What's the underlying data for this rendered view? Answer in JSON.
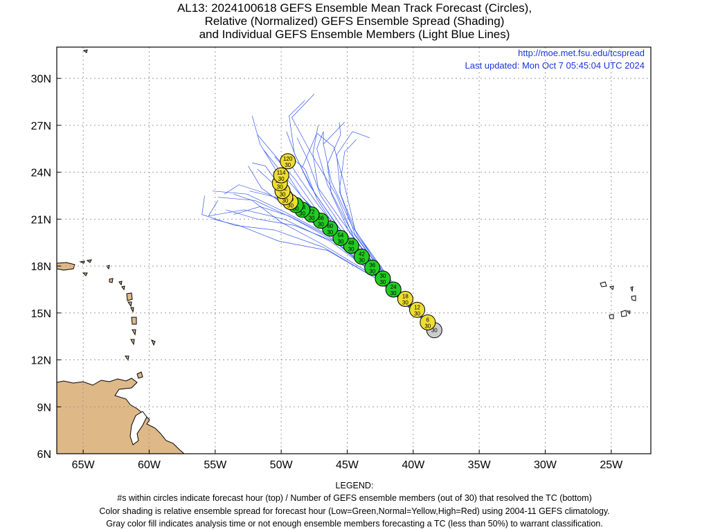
{
  "title_lines": [
    "AL13: 2024100618 GEFS Ensemble Mean Track Forecast (Circles),",
    "Relative (Normalized) GEFS Ensemble Spread (Shading)",
    "and Individual GEFS Ensemble Members (Light Blue Lines)"
  ],
  "url": "http://moe.met.fsu.edu/tcspread",
  "updated": "Last updated: Mon Oct 7 05:45:04 UTC 2024",
  "axes": {
    "lon_range": [
      -67,
      -22
    ],
    "lat_range": [
      6,
      32
    ],
    "x_ticks": [
      {
        "lon": -65,
        "label": "65W"
      },
      {
        "lon": -60,
        "label": "60W"
      },
      {
        "lon": -55,
        "label": "55W"
      },
      {
        "lon": -50,
        "label": "50W"
      },
      {
        "lon": -45,
        "label": "45W"
      },
      {
        "lon": -40,
        "label": "40W"
      },
      {
        "lon": -35,
        "label": "35W"
      },
      {
        "lon": -30,
        "label": "30W"
      },
      {
        "lon": -25,
        "label": "25W"
      }
    ],
    "y_ticks": [
      {
        "lat": 6,
        "label": "6N"
      },
      {
        "lat": 9,
        "label": "9N"
      },
      {
        "lat": 12,
        "label": "12N"
      },
      {
        "lat": 15,
        "label": "15N"
      },
      {
        "lat": 18,
        "label": "18N"
      },
      {
        "lat": 21,
        "label": "21N"
      },
      {
        "lat": 24,
        "label": "24N"
      },
      {
        "lat": 27,
        "label": "27N"
      },
      {
        "lat": 30,
        "label": "30N"
      }
    ]
  },
  "colors": {
    "low": "#22cc22",
    "normal": "#eedd33",
    "high": "#dd2222",
    "gray": "#cccccc",
    "member": "#3355ee",
    "land": "#deb887",
    "url": "#1a35d8"
  },
  "track": [
    {
      "hour": 0,
      "members": 30,
      "lon": -38.4,
      "lat": 13.9,
      "cls": "gray"
    },
    {
      "hour": 6,
      "members": 30,
      "lon": -38.9,
      "lat": 14.4,
      "cls": "normal"
    },
    {
      "hour": 12,
      "members": 30,
      "lon": -39.7,
      "lat": 15.2,
      "cls": "normal"
    },
    {
      "hour": 18,
      "members": 30,
      "lon": -40.6,
      "lat": 15.9,
      "cls": "normal"
    },
    {
      "hour": 24,
      "members": 30,
      "lon": -41.5,
      "lat": 16.5,
      "cls": "low"
    },
    {
      "hour": 30,
      "members": 30,
      "lon": -42.3,
      "lat": 17.2,
      "cls": "low"
    },
    {
      "hour": 36,
      "members": 30,
      "lon": -43.1,
      "lat": 17.9,
      "cls": "low"
    },
    {
      "hour": 42,
      "members": 30,
      "lon": -43.9,
      "lat": 18.6,
      "cls": "low"
    },
    {
      "hour": 48,
      "members": 30,
      "lon": -44.7,
      "lat": 19.3,
      "cls": "low"
    },
    {
      "hour": 54,
      "members": 30,
      "lon": -45.5,
      "lat": 19.8,
      "cls": "low"
    },
    {
      "hour": 60,
      "members": 30,
      "lon": -46.3,
      "lat": 20.4,
      "cls": "low"
    },
    {
      "hour": 66,
      "members": 30,
      "lon": -47.0,
      "lat": 20.9,
      "cls": "low"
    },
    {
      "hour": 72,
      "members": 30,
      "lon": -47.7,
      "lat": 21.3,
      "cls": "low"
    },
    {
      "hour": 78,
      "members": 30,
      "lon": -48.4,
      "lat": 21.6,
      "cls": "low"
    },
    {
      "hour": 84,
      "members": 30,
      "lon": -48.9,
      "lat": 21.9,
      "cls": "low"
    },
    {
      "hour": 90,
      "members": 30,
      "lon": -49.3,
      "lat": 22.1,
      "cls": "normal"
    },
    {
      "hour": 96,
      "members": 30,
      "lon": -49.7,
      "lat": 22.4,
      "cls": "normal"
    },
    {
      "hour": 102,
      "members": 30,
      "lon": -49.9,
      "lat": 22.8,
      "cls": "normal"
    },
    {
      "hour": 108,
      "members": 30,
      "lon": -50.1,
      "lat": 23.3,
      "cls": "normal"
    },
    {
      "hour": 114,
      "members": 30,
      "lon": -50.0,
      "lat": 23.8,
      "cls": "normal"
    },
    {
      "hour": 120,
      "members": 30,
      "lon": -49.5,
      "lat": 24.7,
      "cls": "normal"
    }
  ],
  "members": [
    [
      [
        -38.4,
        13.9
      ],
      [
        -42,
        17
      ],
      [
        -45.5,
        20
      ],
      [
        -48,
        22
      ],
      [
        -49.8,
        23.8
      ],
      [
        -51.3,
        25.4
      ]
    ],
    [
      [
        -38.4,
        13.9
      ],
      [
        -42,
        17
      ],
      [
        -45.2,
        19.6
      ],
      [
        -47.5,
        21.8
      ],
      [
        -49,
        23.6
      ],
      [
        -50.5,
        25
      ]
    ],
    [
      [
        -38.4,
        13.9
      ],
      [
        -42,
        17.1
      ],
      [
        -45,
        20
      ],
      [
        -47,
        22.5
      ],
      [
        -48,
        24.8
      ],
      [
        -48.8,
        26.2
      ]
    ],
    [
      [
        -38.4,
        13.9
      ],
      [
        -42,
        17.2
      ],
      [
        -44.8,
        20.4
      ],
      [
        -46.5,
        23.2
      ],
      [
        -47.3,
        25.5
      ],
      [
        -46.8,
        26.6
      ],
      [
        -46.8,
        25.8
      ]
    ],
    [
      [
        -38.4,
        13.9
      ],
      [
        -42.2,
        17.3
      ],
      [
        -45,
        20.4
      ],
      [
        -47.2,
        23
      ],
      [
        -47.6,
        25.2
      ],
      [
        -47.2,
        27
      ]
    ],
    [
      [
        -38.4,
        13.9
      ],
      [
        -42.2,
        17.2
      ],
      [
        -45.2,
        20
      ],
      [
        -47.8,
        21.8
      ],
      [
        -50,
        22.8
      ],
      [
        -51.8,
        24.2
      ]
    ],
    [
      [
        -38.4,
        13.9
      ],
      [
        -42,
        17
      ],
      [
        -44.5,
        19.8
      ],
      [
        -45.8,
        22.5
      ],
      [
        -47.6,
        25
      ],
      [
        -49.2,
        27.5
      ],
      [
        -47.5,
        29
      ]
    ],
    [
      [
        -38.4,
        13.9
      ],
      [
        -41.8,
        17
      ],
      [
        -44.4,
        20
      ],
      [
        -45.6,
        22.8
      ],
      [
        -45.2,
        25.3
      ],
      [
        -44.3,
        26.1
      ]
    ],
    [
      [
        -38.4,
        13.9
      ],
      [
        -41.8,
        17.2
      ],
      [
        -44.6,
        20.5
      ],
      [
        -46.2,
        23.4
      ],
      [
        -46.8,
        25.8
      ],
      [
        -45.2,
        27.2
      ]
    ],
    [
      [
        -38.4,
        13.9
      ],
      [
        -42,
        17.2
      ],
      [
        -44.4,
        20.3
      ],
      [
        -45.3,
        23.5
      ],
      [
        -46,
        25.6
      ],
      [
        -47.3,
        26.5
      ],
      [
        -48.4,
        24.3
      ]
    ],
    [
      [
        -38.4,
        13.9
      ],
      [
        -42.3,
        17.4
      ],
      [
        -45.4,
        20.2
      ],
      [
        -47.5,
        22.7
      ],
      [
        -48.9,
        25
      ],
      [
        -49.6,
        26.6
      ]
    ],
    [
      [
        -38.4,
        13.9
      ],
      [
        -42.4,
        17.4
      ],
      [
        -45.8,
        20.1
      ],
      [
        -48.3,
        21.8
      ],
      [
        -50,
        23
      ],
      [
        -51.2,
        24.4
      ],
      [
        -52.2,
        24.6
      ]
    ],
    [
      [
        -38.4,
        13.9
      ],
      [
        -42.6,
        17.2
      ],
      [
        -46,
        19.6
      ],
      [
        -49.2,
        21.1
      ],
      [
        -52,
        22.2
      ],
      [
        -54.8,
        22.4
      ]
    ],
    [
      [
        -38.4,
        13.9
      ],
      [
        -42.6,
        17.3
      ],
      [
        -46.3,
        19.6
      ],
      [
        -49.8,
        21
      ],
      [
        -52.8,
        21.6
      ],
      [
        -55.5,
        21.2
      ],
      [
        -54.8,
        22.2
      ]
    ],
    [
      [
        -38.4,
        13.9
      ],
      [
        -42.8,
        17.2
      ],
      [
        -46.8,
        19.2
      ],
      [
        -50.5,
        20.3
      ],
      [
        -53.5,
        20.6
      ],
      [
        -56,
        21.3
      ],
      [
        -55.8,
        22.5
      ]
    ],
    [
      [
        -38.4,
        13.9
      ],
      [
        -42.6,
        17.1
      ],
      [
        -46.5,
        19
      ],
      [
        -50.2,
        19.6
      ],
      [
        -53.2,
        20.6
      ],
      [
        -55.2,
        21
      ]
    ],
    [
      [
        -38.4,
        13.9
      ],
      [
        -42.8,
        17.3
      ],
      [
        -46.9,
        19.4
      ],
      [
        -50,
        20.8
      ],
      [
        -52.2,
        22.2
      ],
      [
        -53.6,
        22.6
      ]
    ],
    [
      [
        -38.4,
        13.9
      ],
      [
        -42.5,
        17.4
      ],
      [
        -46,
        20.2
      ],
      [
        -48.8,
        22.2
      ],
      [
        -50.3,
        24
      ],
      [
        -51.6,
        25.8
      ],
      [
        -52.2,
        27.6
      ]
    ],
    [
      [
        -38.4,
        13.9
      ],
      [
        -42.5,
        17.3
      ],
      [
        -45.9,
        20.2
      ],
      [
        -48.5,
        22.5
      ],
      [
        -50.2,
        24.8
      ],
      [
        -51.8,
        26.4
      ]
    ],
    [
      [
        -38.4,
        13.9
      ],
      [
        -42.2,
        17.1
      ],
      [
        -45.6,
        19.9
      ],
      [
        -48.2,
        21.6
      ],
      [
        -50.4,
        22.4
      ],
      [
        -52.4,
        22.8
      ]
    ],
    [
      [
        -38.4,
        13.9
      ],
      [
        -42.4,
        17.1
      ],
      [
        -45.8,
        19.5
      ],
      [
        -49,
        20.6
      ],
      [
        -51.8,
        21
      ],
      [
        -54.2,
        21.6
      ]
    ],
    [
      [
        -38.4,
        13.9
      ],
      [
        -42,
        17
      ],
      [
        -45.3,
        19.7
      ],
      [
        -47.3,
        22.3
      ],
      [
        -48.2,
        24.2
      ],
      [
        -49.3,
        25
      ]
    ],
    [
      [
        -38.4,
        13.9
      ],
      [
        -42.1,
        17.1
      ],
      [
        -45.6,
        19.8
      ],
      [
        -48.4,
        21.5
      ],
      [
        -51,
        22.6
      ],
      [
        -53.2,
        23.2
      ],
      [
        -54.3,
        22.6
      ]
    ],
    [
      [
        -38.4,
        13.9
      ],
      [
        -42.3,
        17.2
      ],
      [
        -46,
        19.8
      ],
      [
        -49.6,
        21.4
      ],
      [
        -52.6,
        22.6
      ],
      [
        -55.2,
        22.8
      ]
    ],
    [
      [
        -38.4,
        13.9
      ],
      [
        -42.4,
        17.4
      ],
      [
        -45.7,
        20.5
      ],
      [
        -47.8,
        23.1
      ],
      [
        -49,
        25.2
      ],
      [
        -49.4,
        27.6
      ],
      [
        -48.2,
        28.6
      ]
    ],
    [
      [
        -38.4,
        13.9
      ],
      [
        -41.9,
        17
      ],
      [
        -44.8,
        20.1
      ],
      [
        -46.2,
        22.6
      ],
      [
        -46.5,
        24.5
      ],
      [
        -45.5,
        26.4
      ],
      [
        -45.6,
        27.2
      ]
    ],
    [
      [
        -38.4,
        13.9
      ],
      [
        -41.6,
        16.9
      ],
      [
        -44.2,
        19.9
      ],
      [
        -45.5,
        22.6
      ],
      [
        -45.8,
        25.1
      ],
      [
        -44.6,
        26.6
      ],
      [
        -43.3,
        26.2
      ]
    ],
    [
      [
        -38.4,
        13.9
      ],
      [
        -42.6,
        17.4
      ],
      [
        -46.4,
        19.9
      ],
      [
        -49.4,
        21.2
      ],
      [
        -51.6,
        21.8
      ],
      [
        -53.6,
        21.3
      ]
    ],
    [
      [
        -38.4,
        13.9
      ],
      [
        -42.5,
        17.4
      ],
      [
        -46.2,
        20.1
      ],
      [
        -49.3,
        21.6
      ],
      [
        -51.5,
        23
      ],
      [
        -52.5,
        24.4
      ]
    ],
    [
      [
        -38.4,
        13.9
      ],
      [
        -42,
        17
      ],
      [
        -45,
        19.6
      ],
      [
        -47.2,
        21.9
      ],
      [
        -48.6,
        23.6
      ],
      [
        -49.6,
        24.9
      ]
    ]
  ],
  "legend_lines": [
    "LEGEND:",
    "#s within circles indicate forecast hour (top) / Number of GEFS ensemble members (out of 30) that resolved the TC (bottom)",
    "Color shading is relative ensemble spread for forecast hour (Low=Green,Normal=Yellow,High=Red) using 2004-11 GEFS climatology.",
    "Gray color fill indicates analysis time or not enough ensemble members forecasting a TC (less than 50%) to warrant classification."
  ]
}
